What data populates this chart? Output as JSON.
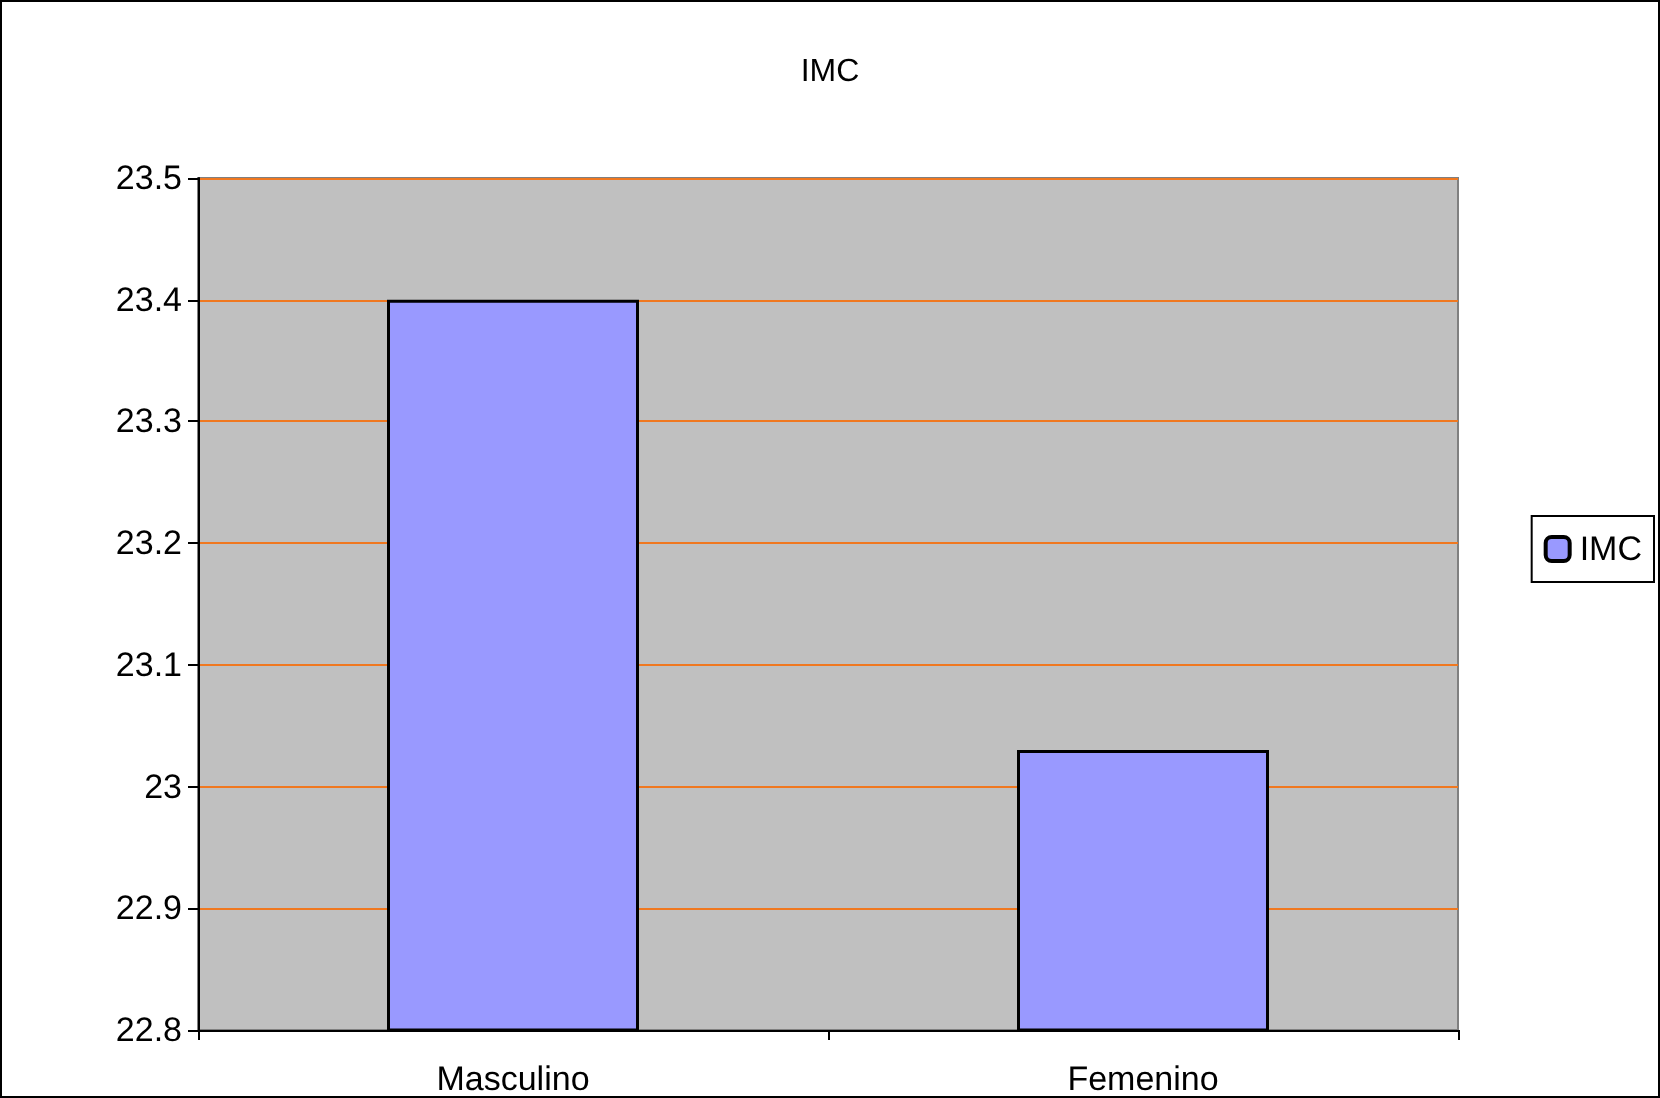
{
  "chart_data": {
    "type": "bar",
    "title": "IMC",
    "categories": [
      "Masculino",
      "Femenino"
    ],
    "series": [
      {
        "name": "IMC",
        "color": "#9999ff",
        "values": [
          23.4,
          23.03
        ]
      }
    ],
    "ylim": [
      22.8,
      23.5
    ],
    "yticks": [
      22.8,
      22.9,
      23,
      23.1,
      23.2,
      23.3,
      23.4,
      23.5
    ],
    "grid": "y",
    "legend": "right"
  }
}
